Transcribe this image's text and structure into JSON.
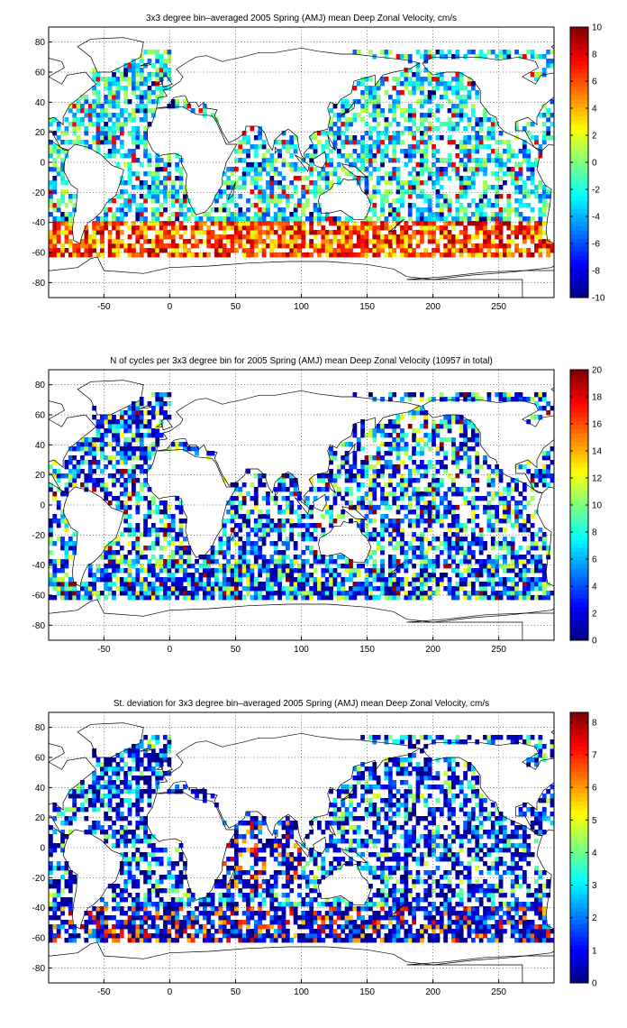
{
  "chart_data": [
    {
      "type": "heatmap",
      "title": "3x3 degree bin–averaged 2005 Spring (AMJ) mean Deep Zonal Velocity, cm/s",
      "xlabel": "",
      "ylabel": "",
      "xlim": [
        -92,
        292
      ],
      "ylim": [
        -90,
        90
      ],
      "x_ticks": [
        "-50",
        "0",
        "50",
        "100",
        "150",
        "200",
        "250"
      ],
      "y_ticks": [
        "80",
        "60",
        "40",
        "20",
        "0",
        "-20",
        "-40",
        "-60",
        "-80"
      ],
      "grid": true,
      "colormap": "jet",
      "colorbar": {
        "min": -10,
        "max": 10,
        "ticks": [
          "10",
          "8",
          "6",
          "4",
          "2",
          "0",
          "-2",
          "-4",
          "-6",
          "-8",
          "-10"
        ]
      },
      "bin_size_deg": 3
    },
    {
      "type": "heatmap",
      "title": "N of cycles per 3x3 degree bin for 2005 Spring (AMJ) mean Deep Zonal Velocity (10957 in total)",
      "xlabel": "",
      "ylabel": "",
      "xlim": [
        -92,
        292
      ],
      "ylim": [
        -90,
        90
      ],
      "x_ticks": [
        "-50",
        "0",
        "50",
        "100",
        "150",
        "200",
        "250"
      ],
      "y_ticks": [
        "80",
        "60",
        "40",
        "20",
        "0",
        "-20",
        "-40",
        "-60",
        "-80"
      ],
      "grid": true,
      "colormap": "jet",
      "colorbar": {
        "min": 0,
        "max": 20,
        "ticks": [
          "20",
          "18",
          "16",
          "14",
          "12",
          "10",
          "8",
          "6",
          "4",
          "2",
          "0"
        ]
      },
      "bin_size_deg": 3
    },
    {
      "type": "heatmap",
      "title": "St. deviation for 3x3 degree bin–averaged 2005 Spring (AMJ) mean Deep Zonal Velocity, cm/s",
      "xlabel": "",
      "ylabel": "",
      "xlim": [
        -92,
        292
      ],
      "ylim": [
        -90,
        90
      ],
      "x_ticks": [
        "-50",
        "0",
        "50",
        "100",
        "150",
        "200",
        "250"
      ],
      "y_ticks": [
        "80",
        "60",
        "40",
        "20",
        "0",
        "-20",
        "-40",
        "-60",
        "-80"
      ],
      "grid": true,
      "colormap": "jet",
      "colorbar": {
        "min": 0,
        "max": 8.3,
        "ticks": [
          "8",
          "7",
          "6",
          "5",
          "4",
          "3",
          "2",
          "1",
          "0"
        ]
      },
      "bin_size_deg": 3
    }
  ]
}
